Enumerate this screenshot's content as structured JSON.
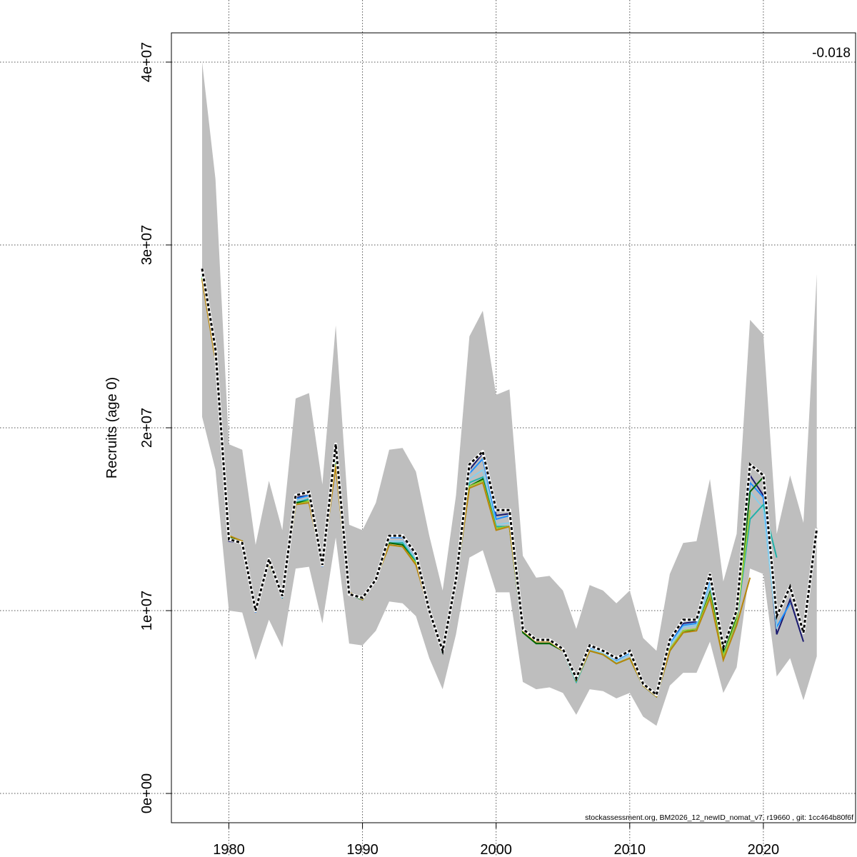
{
  "chart_data": {
    "type": "line",
    "ylabel": "Recruits (age 0)",
    "xlabel": "",
    "xlim": [
      1975.7,
      2026.9
    ],
    "ylim": [
      -1600000.0,
      41600000.0
    ],
    "x_ticks": [
      1980,
      1990,
      2000,
      2010,
      2020
    ],
    "x_tick_labels": [
      "1980",
      "1990",
      "2000",
      "2010",
      "2020"
    ],
    "y_ticks": [
      0,
      10000000,
      20000000,
      30000000,
      40000000
    ],
    "y_tick_labels": [
      "0e+00",
      "1e+07",
      "2e+07",
      "3e+07",
      "4e+07"
    ],
    "grid": true,
    "annotation": "-0.018",
    "footnote": "stockassessment.org, BM2026_12_newID_nomat_v7, r19660 , git: 1cc464b80f6f",
    "band": {
      "color": "#bebebe",
      "x": [
        1978,
        1979,
        1980,
        1981,
        1982,
        1983,
        1984,
        1985,
        1986,
        1987,
        1988,
        1989,
        1990,
        1991,
        1992,
        1993,
        1994,
        1995,
        1996,
        1997,
        1998,
        1999,
        2000,
        2001,
        2002,
        2003,
        2004,
        2005,
        2006,
        2007,
        2008,
        2009,
        2010,
        2011,
        2012,
        2013,
        2014,
        2015,
        2016,
        2017,
        2018,
        2019,
        2020,
        2021,
        2022,
        2023,
        2024
      ],
      "lower": [
        20.6,
        17.7,
        10.0,
        9.9,
        7.3,
        9.5,
        8.0,
        12.3,
        12.4,
        9.3,
        14.0,
        8.2,
        8.1,
        8.9,
        10.5,
        10.4,
        9.7,
        7.4,
        5.7,
        8.7,
        12.9,
        13.3,
        11.0,
        11.0,
        6.1,
        5.7,
        5.8,
        5.5,
        4.3,
        5.7,
        5.6,
        5.2,
        5.5,
        4.2,
        3.7,
        5.9,
        6.6,
        6.6,
        8.3,
        5.5,
        6.9,
        12.3,
        12.0,
        6.4,
        7.4,
        5.1,
        7.5
      ],
      "upper": [
        40.0,
        33.6,
        19.1,
        18.8,
        13.6,
        17.1,
        14.4,
        21.6,
        21.9,
        16.9,
        25.6,
        14.7,
        14.4,
        15.9,
        18.8,
        18.9,
        17.6,
        14.1,
        11.1,
        16.3,
        25.0,
        26.4,
        21.8,
        22.1,
        13.0,
        11.8,
        11.9,
        11.1,
        9.0,
        11.4,
        11.1,
        10.4,
        11.1,
        8.5,
        7.8,
        12.0,
        13.7,
        13.8,
        17.2,
        11.6,
        14.2,
        25.9,
        25.1,
        14.2,
        17.4,
        14.8,
        28.4
      ]
    },
    "series": [
      {
        "color": "#000000",
        "dashed": true,
        "x": [
          1978,
          1979,
          1980,
          1981,
          1982,
          1983,
          1984,
          1985,
          1986,
          1987,
          1988,
          1989,
          1990,
          1991,
          1992,
          1993,
          1994,
          1995,
          1996,
          1997,
          1998,
          1999,
          2000,
          2001,
          2002,
          2003,
          2004,
          2005,
          2006,
          2007,
          2008,
          2009,
          2010,
          2011,
          2012,
          2013,
          2014,
          2015,
          2016,
          2017,
          2018,
          2019,
          2020,
          2021,
          2022,
          2023,
          2024
        ],
        "values": [
          28.7,
          24.3,
          13.9,
          13.7,
          10.0,
          12.8,
          10.8,
          16.3,
          16.5,
          12.5,
          19.1,
          10.9,
          10.7,
          11.7,
          14.1,
          14.1,
          13.1,
          10.0,
          7.8,
          11.7,
          18.0,
          18.7,
          15.5,
          15.5,
          9.0,
          8.4,
          8.4,
          7.9,
          6.3,
          8.1,
          7.8,
          7.4,
          7.8,
          6.0,
          5.4,
          8.4,
          9.5,
          9.5,
          12.0,
          8.0,
          10.0,
          18.0,
          17.4,
          9.7,
          11.3,
          8.8,
          14.5
        ]
      },
      {
        "color": "#191970",
        "dashed": false,
        "x": [
          1978,
          1979,
          1980,
          1981,
          1982,
          1983,
          1984,
          1985,
          1986,
          1987,
          1988,
          1989,
          1990,
          1991,
          1992,
          1993,
          1994,
          1995,
          1996,
          1997,
          1998,
          1999,
          2000,
          2001,
          2002,
          2003,
          2004,
          2005,
          2006,
          2007,
          2008,
          2009,
          2010,
          2011,
          2012,
          2013,
          2014,
          2015,
          2016,
          2017,
          2018,
          2019,
          2020,
          2021,
          2022,
          2023
        ],
        "values": [
          28.6,
          24.2,
          13.8,
          13.7,
          9.9,
          12.7,
          10.7,
          16.2,
          16.3,
          12.4,
          18.9,
          10.9,
          10.6,
          11.7,
          14.0,
          14.0,
          13.0,
          10.0,
          7.7,
          11.6,
          17.7,
          18.6,
          15.2,
          15.3,
          8.9,
          8.3,
          8.3,
          7.8,
          6.2,
          8.0,
          7.8,
          7.3,
          7.7,
          5.9,
          5.3,
          8.3,
          9.3,
          9.4,
          11.8,
          7.8,
          9.8,
          17.4,
          16.3,
          8.7,
          10.6,
          8.3
        ]
      },
      {
        "color": "#1e90ff",
        "dashed": false,
        "x": [
          1978,
          1979,
          1980,
          1981,
          1982,
          1983,
          1984,
          1985,
          1986,
          1987,
          1988,
          1989,
          1990,
          1991,
          1992,
          1993,
          1994,
          1995,
          1996,
          1997,
          1998,
          1999,
          2000,
          2001,
          2002,
          2003,
          2004,
          2005,
          2006,
          2007,
          2008,
          2009,
          2010,
          2011,
          2012,
          2013,
          2014,
          2015,
          2016,
          2017,
          2018,
          2019,
          2020,
          2021,
          2022
        ],
        "values": [
          28.5,
          24.1,
          13.9,
          13.7,
          9.9,
          12.7,
          10.7,
          16.1,
          16.3,
          12.4,
          18.7,
          10.9,
          10.6,
          11.7,
          14.0,
          14.0,
          13.0,
          10.0,
          7.7,
          11.6,
          17.5,
          18.3,
          15.0,
          15.2,
          8.9,
          8.3,
          8.3,
          7.8,
          6.2,
          8.0,
          7.8,
          7.3,
          7.7,
          5.9,
          5.3,
          8.2,
          9.2,
          9.3,
          11.6,
          7.8,
          9.7,
          17.0,
          16.2,
          9.1,
          10.4
        ]
      },
      {
        "color": "#87ceeb",
        "dashed": false,
        "x": [
          1978,
          1979,
          1980,
          1981,
          1982,
          1983,
          1984,
          1985,
          1986,
          1987,
          1988,
          1989,
          1990,
          1991,
          1992,
          1993,
          1994,
          1995,
          1996,
          1997,
          1998,
          1999,
          2000,
          2001,
          2002,
          2003,
          2004,
          2005,
          2006,
          2007,
          2008,
          2009,
          2010,
          2011,
          2012,
          2013,
          2014,
          2015,
          2016,
          2017,
          2018,
          2019,
          2020,
          2021
        ],
        "values": [
          28.4,
          24.0,
          14.0,
          13.7,
          10.0,
          12.7,
          10.8,
          16.0,
          16.1,
          12.5,
          18.5,
          10.9,
          10.6,
          11.7,
          13.8,
          13.8,
          12.8,
          10.0,
          7.7,
          11.6,
          17.2,
          17.7,
          14.7,
          14.8,
          8.8,
          8.3,
          8.3,
          7.8,
          6.2,
          7.9,
          7.7,
          7.2,
          7.6,
          5.9,
          5.3,
          8.1,
          9.1,
          9.2,
          11.4,
          7.7,
          9.6,
          16.5,
          15.6,
          9.0
        ]
      },
      {
        "color": "#20b2aa",
        "dashed": false,
        "x": [
          1978,
          1979,
          1980,
          1981,
          1982,
          1983,
          1984,
          1985,
          1986,
          1987,
          1988,
          1989,
          1990,
          1991,
          1992,
          1993,
          1994,
          1995,
          1996,
          1997,
          1998,
          1999,
          2000,
          2001,
          2002,
          2003,
          2004,
          2005,
          2006,
          2007,
          2008,
          2009,
          2010,
          2011,
          2012,
          2013,
          2014,
          2015,
          2016,
          2017,
          2018,
          2019,
          2020,
          2021
        ],
        "values": [
          28.3,
          23.9,
          14.0,
          13.7,
          10.0,
          12.7,
          10.8,
          15.9,
          16.1,
          12.5,
          18.2,
          10.9,
          10.6,
          11.7,
          13.7,
          13.7,
          12.7,
          10.0,
          7.7,
          11.6,
          17.0,
          17.3,
          14.6,
          14.6,
          8.8,
          8.2,
          8.2,
          7.8,
          6.1,
          7.8,
          7.6,
          7.1,
          7.4,
          5.9,
          5.3,
          7.9,
          8.9,
          9.0,
          11.0,
          7.6,
          9.4,
          15.0,
          15.8,
          12.9
        ]
      },
      {
        "color": "#006400",
        "dashed": false,
        "x": [
          1978,
          1979,
          1980,
          1981,
          1982,
          1983,
          1984,
          1985,
          1986,
          1987,
          1988,
          1989,
          1990,
          1991,
          1992,
          1993,
          1994,
          1995,
          1996,
          1997,
          1998,
          1999,
          2000,
          2001,
          2002,
          2003,
          2004,
          2005,
          2006,
          2007,
          2008,
          2009,
          2010,
          2011,
          2012,
          2013,
          2014,
          2015,
          2016,
          2017,
          2018,
          2019,
          2020
        ],
        "values": [
          28.2,
          23.8,
          14.0,
          13.8,
          10.1,
          12.6,
          10.8,
          15.9,
          16.0,
          12.5,
          18.1,
          10.9,
          10.6,
          11.7,
          13.7,
          13.6,
          12.6,
          10.0,
          7.7,
          11.6,
          16.8,
          17.2,
          14.5,
          14.6,
          8.8,
          8.2,
          8.2,
          7.8,
          6.2,
          7.8,
          7.6,
          7.1,
          7.4,
          5.9,
          5.3,
          7.8,
          8.8,
          9.0,
          11.0,
          7.8,
          9.6,
          16.5,
          17.3
        ]
      },
      {
        "color": "#9acd32",
        "dashed": false,
        "x": [
          1978,
          1979,
          1980,
          1981,
          1982,
          1983,
          1984,
          1985,
          1986,
          1987,
          1988,
          1989,
          1990,
          1991,
          1992,
          1993,
          1994,
          1995,
          1996,
          1997,
          1998,
          1999,
          2000,
          2001,
          2002,
          2003,
          2004,
          2005,
          2006,
          2007,
          2008,
          2009,
          2010,
          2011,
          2012,
          2013,
          2014,
          2015,
          2016,
          2017,
          2018,
          2019
        ],
        "values": [
          28.2,
          23.8,
          14.1,
          13.8,
          10.1,
          12.6,
          10.9,
          15.8,
          16.0,
          12.6,
          18.0,
          11.0,
          10.6,
          11.7,
          13.6,
          13.5,
          12.6,
          10.0,
          7.8,
          11.7,
          16.8,
          17.1,
          14.5,
          14.6,
          8.9,
          8.3,
          8.3,
          7.8,
          6.2,
          7.8,
          7.6,
          7.1,
          7.4,
          5.9,
          5.3,
          7.9,
          8.9,
          9.0,
          10.9,
          7.5,
          9.5,
          15.5
        ]
      },
      {
        "color": "#b8860b",
        "dashed": false,
        "x": [
          1978,
          1979,
          1980,
          1981,
          1982,
          1983,
          1984,
          1985,
          1986,
          1987,
          1988,
          1989,
          1990,
          1991,
          1992,
          1993,
          1994,
          1995,
          1996,
          1997,
          1998,
          1999,
          2000,
          2001,
          2002,
          2003,
          2004,
          2005,
          2006,
          2007,
          2008,
          2009,
          2010,
          2011,
          2012,
          2013,
          2014,
          2015,
          2016,
          2017,
          2018,
          2019
        ],
        "values": [
          28.1,
          23.7,
          14.1,
          13.8,
          10.1,
          12.6,
          10.9,
          15.8,
          15.9,
          12.6,
          17.9,
          11.0,
          10.6,
          11.7,
          13.6,
          13.5,
          12.5,
          10.0,
          7.8,
          11.7,
          16.7,
          17.0,
          14.4,
          14.6,
          8.9,
          8.3,
          8.3,
          7.8,
          6.2,
          7.8,
          7.6,
          7.1,
          7.4,
          5.9,
          5.3,
          7.8,
          8.8,
          8.9,
          10.7,
          7.3,
          9.2,
          11.8
        ]
      },
      {
        "color": "#696969",
        "dashed": false,
        "x": [
          2023,
          2024
        ],
        "values": [
          8.8,
          14.5
        ]
      }
    ],
    "value_scale": 1000000
  }
}
